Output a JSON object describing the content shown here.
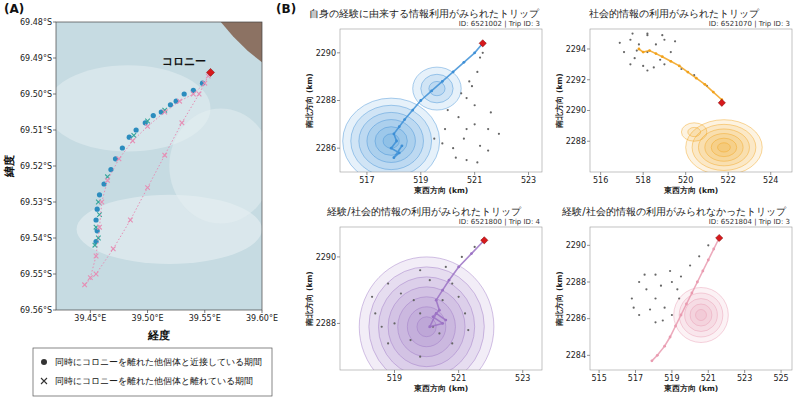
{
  "chart_data": [
    {
      "type": "map",
      "panel": "(A)",
      "xlabel": "経度",
      "ylabel": "緯度",
      "legend": "bottom",
      "xlim": [
        39.42,
        39.6
      ],
      "xticks": [
        {
          "value": 39.45,
          "label": "39.45°E"
        },
        {
          "value": 39.5,
          "label": "39.50°E"
        },
        {
          "value": 39.55,
          "label": "39.55°E"
        },
        {
          "value": 39.6,
          "label": "39.60°E"
        }
      ],
      "ylim": [
        -69.56,
        -69.48
      ],
      "yticks": [
        {
          "value": -69.48,
          "label": "69.48°S"
        },
        {
          "value": -69.49,
          "label": "69.49°S"
        },
        {
          "value": -69.5,
          "label": "69.50°S"
        },
        {
          "value": -69.51,
          "label": "69.51°S"
        },
        {
          "value": -69.52,
          "label": "69.52°S"
        },
        {
          "value": -69.53,
          "label": "69.53°S"
        },
        {
          "value": -69.54,
          "label": "69.54°S"
        },
        {
          "value": -69.55,
          "label": "69.55°S"
        },
        {
          "value": -69.56,
          "label": "69.56°S"
        }
      ],
      "series": [
        {
          "name": "同時にコロニーを離れた他個体と近接している期間",
          "type": "scatter",
          "marker": "circle",
          "color": "#2b8cbe",
          "x": [
            39.548,
            39.54,
            39.532,
            39.525,
            39.52,
            39.512,
            39.505,
            39.498,
            39.49,
            39.484,
            39.478,
            39.472,
            39.468,
            39.462,
            39.458,
            39.456,
            39.455,
            39.456,
            39.455
          ],
          "values": [
            -69.497,
            -69.499,
            -69.5,
            -69.502,
            -69.503,
            -69.505,
            -69.506,
            -69.508,
            -69.51,
            -69.512,
            -69.515,
            -69.518,
            -69.521,
            -69.525,
            -69.528,
            -69.532,
            -69.535,
            -69.538,
            -69.541
          ]
        },
        {
          "name": "同時にコロニーを離れた他個体と離れている期間",
          "type": "scatter",
          "marker": "x",
          "color": "#34a59a",
          "x": [
            39.515,
            39.5,
            39.488,
            39.465,
            39.457,
            39.458,
            39.455,
            39.457,
            39.454
          ],
          "values": [
            -69.5045,
            -69.5075,
            -69.5115,
            -69.523,
            -69.53,
            -69.5335,
            -69.537,
            -69.54,
            -69.542
          ]
        },
        {
          "type": "line",
          "marker": "x",
          "line_style": "dotted",
          "color": "#e58fb5",
          "x": [
            39.55,
            39.54,
            39.528,
            39.515,
            39.5,
            39.487,
            39.475,
            39.465,
            39.46,
            39.458,
            39.455,
            39.45,
            39.445,
            39.455,
            39.47,
            39.485,
            39.5,
            39.515,
            39.53,
            39.545,
            39.553
          ],
          "values": [
            -69.497,
            -69.5,
            -69.502,
            -69.505,
            -69.509,
            -69.513,
            -69.518,
            -69.524,
            -69.53,
            -69.537,
            -69.545,
            -69.551,
            -69.553,
            -69.55,
            -69.543,
            -69.535,
            -69.526,
            -69.517,
            -69.508,
            -69.5,
            -69.495
          ]
        }
      ],
      "annotations": [
        {
          "x": 39.555,
          "y": -69.494,
          "text": "コロニー",
          "marker": "diamond",
          "color": "#d7191c"
        }
      ]
    },
    {
      "type": "line",
      "panel": "(B)",
      "title": "自身の経験に由来する情報利用がみられたトリップ",
      "id_label": "ID: 6521002 | Trip ID: 3",
      "xlabel": "東西方向 (km)",
      "ylabel": "南北方向 (km)",
      "xlim": [
        516,
        523.5
      ],
      "xticks": [
        517,
        519,
        521,
        523
      ],
      "ylim": [
        2285,
        2291
      ],
      "yticks": [
        2286,
        2288,
        2290
      ],
      "series": [
        {
          "type": "line",
          "marker": "circle",
          "color": "#3d8fd6",
          "x": [
            521.3,
            521.0,
            520.6,
            520.2,
            519.8,
            519.4,
            519.0,
            518.7,
            518.4,
            518.2,
            518.0,
            518.1,
            517.9,
            518.2,
            518.0,
            518.3
          ],
          "values": [
            2290.4,
            2290.0,
            2289.6,
            2289.2,
            2288.8,
            2288.4,
            2288.0,
            2287.6,
            2287.2,
            2286.9,
            2286.6,
            2286.3,
            2286.0,
            2285.8,
            2285.6,
            2286.1
          ]
        },
        {
          "type": "scatter",
          "marker": "circle",
          "color": "#666666",
          "x": [
            520.7,
            521.5,
            519.9,
            520.7,
            520.2,
            521.2,
            520.0,
            521.6,
            520.4,
            521.0,
            519.5,
            521.9,
            520.7,
            520.3,
            521.1,
            519.8,
            521.5,
            520.6,
            520.9,
            521.1,
            521.2,
            520.8,
            521.3,
            520.5,
            521.0
          ],
          "values": [
            2286.8,
            2286.8,
            2286.8,
            2285.5,
            2286.0,
            2286.1,
            2287.6,
            2287.5,
            2287.3,
            2287.0,
            2286.4,
            2286.6,
            2288.1,
            2285.6,
            2285.4,
            2286.2,
            2285.9,
            2286.4,
            2288.6,
            2289.2,
            2289.8,
            2288.8,
            2290.0,
            2288.3,
            2287.8
          ]
        }
      ],
      "density": [
        {
          "x": 517.9,
          "y": 2286.3,
          "radii": [
            0.3,
            0.6,
            0.9,
            1.2,
            1.5,
            1.8
          ]
        },
        {
          "x": 519.6,
          "y": 2288.5,
          "radii": [
            0.3,
            0.6,
            0.9
          ]
        }
      ],
      "annotations": [
        {
          "x": 521.3,
          "y": 2290.4,
          "marker": "diamond",
          "color": "#d7191c"
        }
      ]
    },
    {
      "type": "line",
      "title": "社会的情報の利用がみられたトリップ",
      "id_label": "ID: 6521070 | Trip ID: 3",
      "xlabel": "東西方向 (km)",
      "ylabel": "南北方向 (km)",
      "xlim": [
        515.5,
        525
      ],
      "xticks": [
        516,
        518,
        520,
        522,
        524
      ],
      "ylim": [
        2286,
        2295.3
      ],
      "yticks": [
        2288,
        2290,
        2292,
        2294
      ],
      "series": [
        {
          "type": "line",
          "marker": "circle",
          "color": "#f2a21b",
          "x": [
            521.7,
            521.3,
            520.9,
            520.5,
            520.1,
            519.7,
            519.3,
            518.9,
            518.6,
            518.3,
            518.0,
            517.8
          ],
          "values": [
            2290.7,
            2291.2,
            2291.7,
            2292.1,
            2292.5,
            2292.9,
            2293.2,
            2293.5,
            2293.7,
            2293.9,
            2293.8,
            2294.0
          ]
        },
        {
          "type": "scatter",
          "marker": "circle",
          "color": "#666666",
          "x": [
            518.2,
            519.3,
            517.1,
            518.2,
            518.2,
            517.4,
            519.0,
            517.4,
            519.0,
            517.8,
            518.6,
            517.6,
            518.8,
            516.9,
            519.5,
            518.2,
            518.0,
            518.5,
            517.5,
            519.8,
            520.4,
            521.0,
            518.9,
            517.7
          ],
          "values": [
            2293.8,
            2293.8,
            2293.8,
            2295.0,
            2292.6,
            2294.6,
            2294.6,
            2293.0,
            2293.0,
            2294.3,
            2294.3,
            2293.4,
            2293.3,
            2294.4,
            2294.5,
            2294.9,
            2292.9,
            2292.8,
            2295.0,
            2292.7,
            2292.3,
            2291.6,
            2294.9,
            2293.9
          ]
        }
      ],
      "density": [
        {
          "x": 521.8,
          "y": 2287.6,
          "radii": [
            0.3,
            0.6,
            0.9,
            1.2,
            1.5,
            1.8
          ]
        },
        {
          "x": 520.4,
          "y": 2288.6,
          "radii": [
            0.3,
            0.6
          ]
        }
      ],
      "annotations": [
        {
          "x": 521.7,
          "y": 2290.5,
          "marker": "diamond",
          "color": "#d7191c"
        }
      ]
    },
    {
      "type": "line",
      "title": "経験/社会的情報の利用がみられたトリップ",
      "id_label": "ID: 6521800 | Trip ID: 4",
      "xlabel": "東西方向 (km)",
      "ylabel": "南北方向 (km)",
      "xlim": [
        517.3,
        523.6
      ],
      "xticks": [
        519,
        521,
        523
      ],
      "ylim": [
        2286.6,
        2290.9
      ],
      "yticks": [
        2288,
        2290
      ],
      "series": [
        {
          "type": "line",
          "marker": "circle",
          "color": "#9b72c4",
          "x": [
            521.8,
            521.4,
            521.0,
            520.7,
            520.5,
            520.3,
            520.4,
            520.2,
            520.5,
            520.1,
            520.3,
            520.6
          ],
          "values": [
            2290.5,
            2290.1,
            2289.7,
            2289.3,
            2289.0,
            2288.7,
            2288.4,
            2288.2,
            2288.0,
            2287.9,
            2288.3,
            2288.1
          ]
        },
        {
          "type": "scatter",
          "marker": "circle",
          "color": "#666666",
          "x": [
            519.8,
            521.2,
            518.4,
            519.8,
            519.8,
            518.8,
            520.8,
            518.8,
            520.8,
            519.2,
            520.4,
            518.3,
            521.3,
            519.5,
            520.1,
            520.5,
            519.0,
            519.6,
            520.2,
            518.6,
            521.0,
            520.6,
            521.1,
            521.5
          ],
          "values": [
            2288.3,
            2288.3,
            2288.3,
            2289.6,
            2287.0,
            2289.2,
            2289.2,
            2287.4,
            2287.4,
            2288.9,
            2287.7,
            2288.8,
            2287.8,
            2287.5,
            2289.3,
            2288.7,
            2288.0,
            2288.7,
            2287.9,
            2287.9,
            2288.8,
            2289.7,
            2290.0,
            2290.3
          ]
        }
      ],
      "density": [
        {
          "x": 520.0,
          "y": 2287.9,
          "radii": [
            0.3,
            0.6,
            0.9,
            1.2,
            1.5,
            1.8,
            2.1
          ]
        }
      ],
      "annotations": [
        {
          "x": 521.8,
          "y": 2290.5,
          "marker": "diamond",
          "color": "#d7191c"
        }
      ]
    },
    {
      "type": "line",
      "title": "経験/社会的情報の利用がみられなかったトリップ",
      "id_label": "ID: 6521804 | Trip ID: 3",
      "xlabel": "東西方向 (km)",
      "ylabel": "南北方向 (km)",
      "xlim": [
        514.5,
        525.6
      ],
      "xticks": [
        515,
        517,
        519,
        521,
        523,
        525
      ],
      "ylim": [
        2283.2,
        2291
      ],
      "yticks": [
        2284,
        2286,
        2288,
        2290
      ],
      "series": [
        {
          "type": "line",
          "marker": "circle",
          "color": "#e99bb0",
          "x": [
            521.6,
            521.3,
            521.0,
            520.7,
            520.4,
            520.1,
            519.8,
            519.5,
            519.2,
            518.9,
            518.6,
            518.2,
            517.9
          ],
          "values": [
            2290.4,
            2289.8,
            2289.2,
            2288.6,
            2288.0,
            2287.4,
            2286.8,
            2286.2,
            2285.6,
            2285.0,
            2284.5,
            2284.0,
            2283.7
          ]
        },
        {
          "type": "scatter",
          "marker": "circle",
          "color": "#666666",
          "x": [
            518.1,
            519.4,
            516.8,
            518.1,
            518.1,
            517.2,
            519.0,
            517.2,
            519.0,
            517.6,
            518.6,
            516.9,
            519.3,
            518.4,
            517.8,
            519.5,
            520.0,
            520.5,
            521.0,
            518.5,
            517.5,
            518.9
          ],
          "values": [
            2287.1,
            2287.1,
            2287.1,
            2288.4,
            2285.8,
            2288.0,
            2288.0,
            2286.2,
            2286.2,
            2287.6,
            2286.6,
            2286.6,
            2287.6,
            2287.8,
            2286.5,
            2288.3,
            2288.9,
            2289.4,
            2290.0,
            2285.9,
            2288.4,
            2288.6
          ]
        }
      ],
      "density": [
        {
          "x": 520.6,
          "y": 2286.2,
          "radii": [
            0.3,
            0.6,
            0.9,
            1.2,
            1.5
          ]
        }
      ],
      "annotations": [
        {
          "x": 521.6,
          "y": 2290.4,
          "marker": "diamond",
          "color": "#d7191c"
        }
      ]
    }
  ]
}
